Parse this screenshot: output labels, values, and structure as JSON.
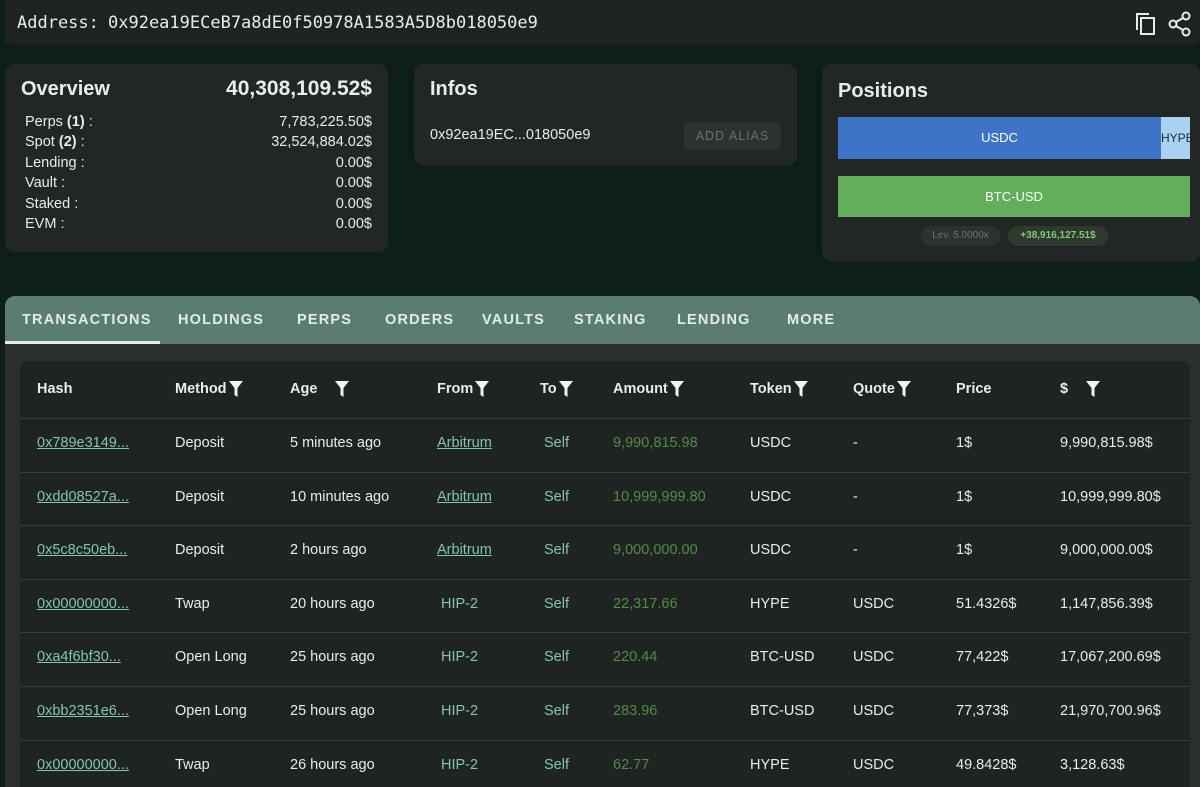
{
  "address": {
    "label": "Address:",
    "value": "0x92ea19ECeB7a8dE0f50978A1583A5D8b018050e9"
  },
  "overview": {
    "title": "Overview",
    "total": "40,308,109.52$",
    "rows": [
      {
        "label": "Perps",
        "count": "(1)",
        "colon": ":",
        "value": "7,783,225.50$"
      },
      {
        "label": "Spot",
        "count": "(2)",
        "colon": ":",
        "value": "32,524,884.02$"
      },
      {
        "label": "Lending",
        "colon": ":",
        "value": "0.00$"
      },
      {
        "label": "Vault",
        "colon": ":",
        "value": "0.00$"
      },
      {
        "label": "Staked",
        "colon": ":",
        "value": "0.00$"
      },
      {
        "label": "EVM",
        "colon": ":",
        "value": "0.00$"
      }
    ]
  },
  "infos": {
    "title": "Infos",
    "address": "0x92ea19EC...018050e9",
    "button": "ADD ALIAS"
  },
  "positions": {
    "title": "Positions",
    "bars": [
      "USDC",
      "HYPE",
      "BTC-USD"
    ],
    "leverage": "Lev. 5.0000x",
    "pnl": "+38,916,127.51$"
  },
  "tabs": [
    "TRANSACTIONS",
    "HOLDINGS",
    "PERPS",
    "ORDERS",
    "VAULTS",
    "STAKING",
    "LENDING",
    "MORE"
  ],
  "table": {
    "headers": [
      {
        "label": "Hash",
        "filter": false
      },
      {
        "label": "Method",
        "filter": true
      },
      {
        "label": "Age",
        "filter": true
      },
      {
        "label": "From",
        "filter": true
      },
      {
        "label": "To",
        "filter": true
      },
      {
        "label": "Amount",
        "filter": true
      },
      {
        "label": "Token",
        "filter": true
      },
      {
        "label": "Quote",
        "filter": true
      },
      {
        "label": "Price",
        "filter": false
      },
      {
        "label": "$",
        "filter": true
      }
    ],
    "rows": [
      [
        "0x789e3149...",
        "Deposit",
        "5 minutes ago",
        "Arbitrum",
        "Self",
        "9,990,815.98",
        "USDC",
        "-",
        "1$",
        "9,990,815.98$"
      ],
      [
        "0xdd08527a...",
        "Deposit",
        "10 minutes ago",
        "Arbitrum",
        "Self",
        "10,999,999.80",
        "USDC",
        "-",
        "1$",
        "10,999,999.80$"
      ],
      [
        "0x5c8c50eb...",
        "Deposit",
        "2 hours ago",
        "Arbitrum",
        "Self",
        "9,000,000.00",
        "USDC",
        "-",
        "1$",
        "9,000,000.00$"
      ],
      [
        "0x00000000...",
        "Twap",
        "20 hours ago",
        "HIP-2",
        "Self",
        "22,317.66",
        "HYPE",
        "USDC",
        "51.4326$",
        "1,147,856.39$"
      ],
      [
        "0xa4f6bf30...",
        "Open Long",
        "25 hours ago",
        "HIP-2",
        "Self",
        "220.44",
        "BTC-USD",
        "USDC",
        "77,422$",
        "17,067,200.69$"
      ],
      [
        "0xbb2351e6...",
        "Open Long",
        "25 hours ago",
        "HIP-2",
        "Self",
        "283.96",
        "BTC-USD",
        "USDC",
        "77,373$",
        "21,970,700.96$"
      ],
      [
        "0x00000000...",
        "Twap",
        "26 hours ago",
        "HIP-2",
        "Self",
        "62.77",
        "HYPE",
        "USDC",
        "49.8428$",
        "3,128.63$"
      ]
    ]
  }
}
